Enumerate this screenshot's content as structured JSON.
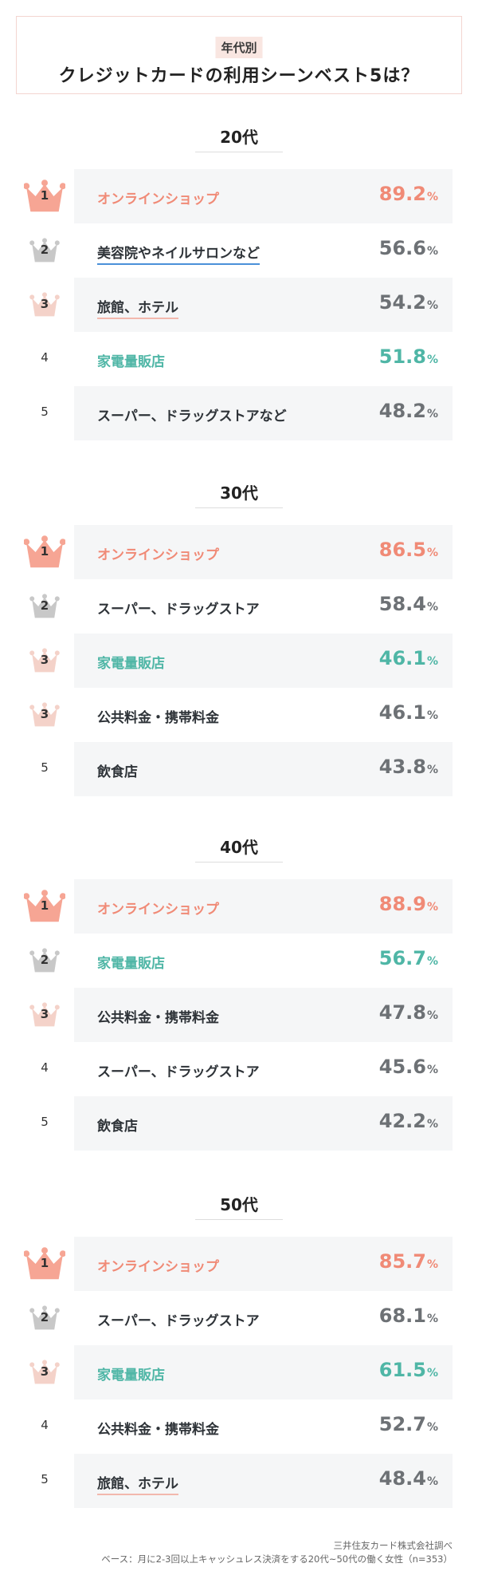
{
  "header": {
    "tag": "年代別",
    "title": "クレジットカードの利用シーンベスト5は？"
  },
  "colors": {
    "top": "#f08a76",
    "highlight": "#4fb6a6",
    "default": "#6d7175",
    "silver": "#c8c8c8",
    "bronze": "#f4d2c9",
    "gold": "#f6a594"
  },
  "chart_data": [
    {
      "type": "table",
      "title": "20代",
      "unit": "%",
      "rows": [
        {
          "rank": "1",
          "label": "オンラインショップ",
          "value": "89.2",
          "style": "top"
        },
        {
          "rank": "2",
          "label": "美容院やネイルサロンなど",
          "value": "56.6",
          "style": "default"
        },
        {
          "rank": "3",
          "label": "旅館、ホテル",
          "value": "54.2",
          "style": "default"
        },
        {
          "rank": "4",
          "label": "家電量販店",
          "value": "51.8",
          "style": "highlight"
        },
        {
          "rank": "5",
          "label": "スーパー、ドラッグストアなど",
          "value": "48.2",
          "style": "default"
        }
      ]
    },
    {
      "type": "table",
      "title": "30代",
      "unit": "%",
      "rows": [
        {
          "rank": "1",
          "label": "オンラインショップ",
          "value": "86.5",
          "style": "top"
        },
        {
          "rank": "2",
          "label": "スーパー、ドラッグストア",
          "value": "58.4",
          "style": "default"
        },
        {
          "rank": "3",
          "label": "家電量販店",
          "value": "46.1",
          "style": "highlight"
        },
        {
          "rank": "3",
          "label": "公共料金・携帯料金",
          "value": "46.1",
          "style": "default"
        },
        {
          "rank": "5",
          "label": "飲食店",
          "value": "43.8",
          "style": "default"
        }
      ]
    },
    {
      "type": "table",
      "title": "40代",
      "unit": "%",
      "rows": [
        {
          "rank": "1",
          "label": "オンラインショップ",
          "value": "88.9",
          "style": "top"
        },
        {
          "rank": "2",
          "label": "家電量販店",
          "value": "56.7",
          "style": "highlight"
        },
        {
          "rank": "3",
          "label": "公共料金・携帯料金",
          "value": "47.8",
          "style": "default"
        },
        {
          "rank": "4",
          "label": "スーパー、ドラッグストア",
          "value": "45.6",
          "style": "default"
        },
        {
          "rank": "5",
          "label": "飲食店",
          "value": "42.2",
          "style": "default"
        }
      ]
    },
    {
      "type": "table",
      "title": "50代",
      "unit": "%",
      "rows": [
        {
          "rank": "1",
          "label": "オンラインショップ",
          "value": "85.7",
          "style": "top"
        },
        {
          "rank": "2",
          "label": "スーパー、ドラッグストア",
          "value": "68.1",
          "style": "default"
        },
        {
          "rank": "3",
          "label": "家電量販店",
          "value": "61.5",
          "style": "highlight"
        },
        {
          "rank": "4",
          "label": "公共料金・携帯料金",
          "value": "52.7",
          "style": "default"
        },
        {
          "rank": "5",
          "label": "旅館、ホテル",
          "value": "48.4",
          "style": "default"
        }
      ]
    }
  ],
  "footer": {
    "source": "三井住友カード株式会社調べ",
    "base": "ベース：月に2-3回以上キャッシュレス決済をする20代~50代の働く女性（n=353）"
  }
}
